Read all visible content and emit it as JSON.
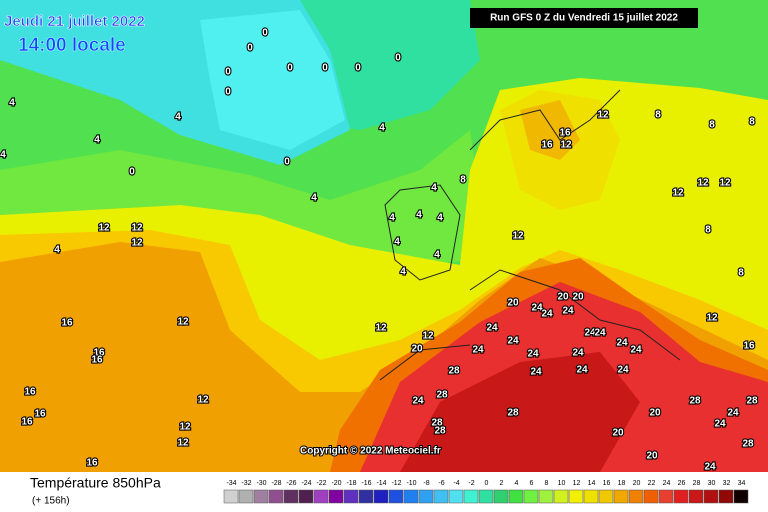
{
  "header": {
    "date": "Jeudi 21 juillet 2022",
    "time": "14:00 locale",
    "run": "Run GFS 0 Z du Vendredi 15 juillet 2022",
    "copyright": "Copyright © 2022 Meteociel.fr"
  },
  "footer": {
    "title": "Température 850hPa",
    "lead": "(+ 156h)"
  },
  "contour_labels": [
    0,
    0,
    0,
    0,
    0,
    0,
    0,
    0,
    0,
    0,
    4,
    4,
    4,
    4,
    4,
    4,
    4,
    4,
    4,
    4,
    4,
    4,
    4,
    4,
    8,
    8,
    8,
    8,
    8,
    8,
    12,
    12,
    12,
    12,
    12,
    12,
    12,
    12,
    12,
    12,
    12,
    12,
    12,
    12,
    12,
    12,
    16,
    16,
    16,
    16,
    16,
    16,
    16,
    16,
    16,
    16,
    20,
    20,
    20,
    20,
    20,
    20,
    20,
    24,
    24,
    24,
    24,
    24,
    24,
    24,
    24,
    24,
    24,
    24,
    24,
    24,
    24,
    24,
    24,
    24,
    24,
    24,
    28,
    28,
    28,
    28,
    28,
    28,
    28,
    28
  ],
  "legend": {
    "ticks": [
      -34,
      -32,
      -30,
      -28,
      -26,
      -24,
      -22,
      -20,
      -18,
      -16,
      -14,
      -12,
      -10,
      -8,
      -6,
      -4,
      -2,
      0,
      2,
      4,
      6,
      8,
      10,
      12,
      14,
      16,
      18,
      20,
      22,
      24,
      26,
      28,
      30,
      32,
      34
    ],
    "colors": [
      "#d0d0d0",
      "#b0b0b0",
      "#a080a0",
      "#905090",
      "#603060",
      "#502050",
      "#a040c0",
      "#8000a0",
      "#6030c0",
      "#3030a0",
      "#2020c0",
      "#2050e0",
      "#2080f0",
      "#30a0f0",
      "#40c0f0",
      "#50e0f0",
      "#40f0d0",
      "#30e0a0",
      "#30d070",
      "#40e040",
      "#70f040",
      "#a0f040",
      "#d0f020",
      "#f0f000",
      "#f0e000",
      "#f0c800",
      "#f0a800",
      "#f08000",
      "#f06000",
      "#e84030",
      "#e02020",
      "#c81818",
      "#b01010",
      "#900808",
      "#100000"
    ]
  }
}
